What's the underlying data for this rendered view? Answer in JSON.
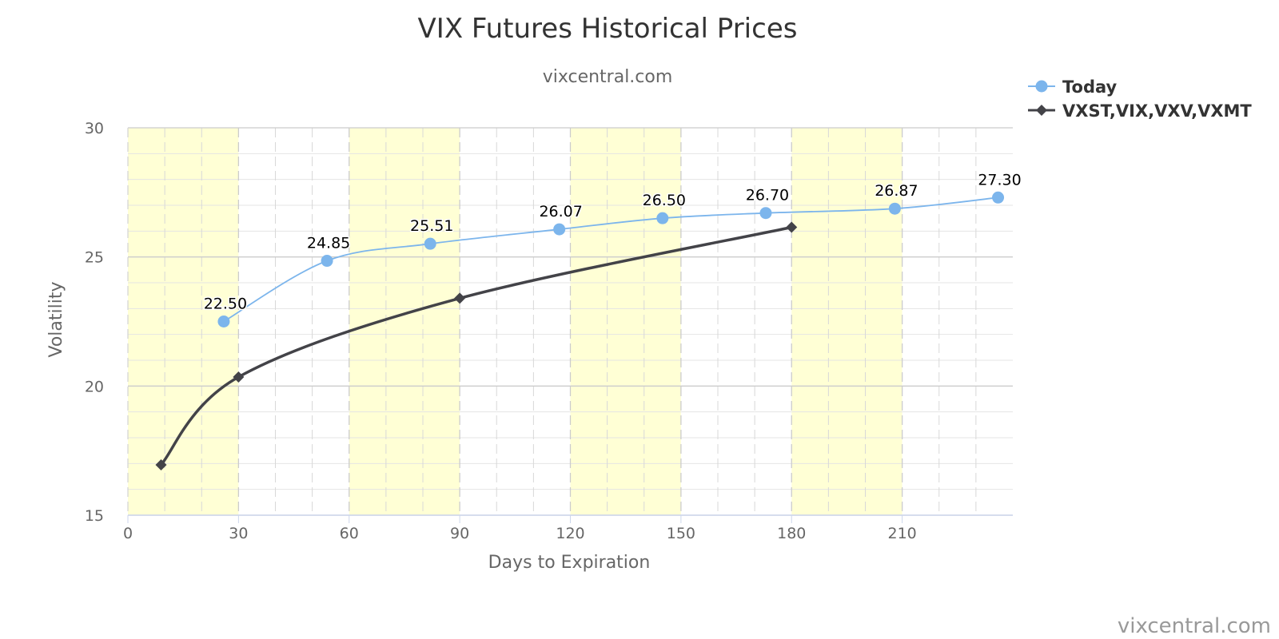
{
  "chart_data": {
    "type": "line",
    "title": "VIX Futures Historical Prices",
    "subtitle": "vixcentral.com",
    "xlabel": "Days to Expiration",
    "ylabel": "Volatility",
    "xlim": [
      0,
      240
    ],
    "ylim": [
      15,
      30
    ],
    "x_ticks": [
      0,
      30,
      60,
      90,
      120,
      150,
      180,
      210
    ],
    "y_ticks": [
      15,
      20,
      25,
      30
    ],
    "x_minor_step": 10,
    "y_minor_step": 1,
    "grid": true,
    "plot_bands": [
      {
        "from": 0,
        "to": 30,
        "color": "#ffffd5"
      },
      {
        "from": 60,
        "to": 90,
        "color": "#ffffd5"
      },
      {
        "from": 120,
        "to": 150,
        "color": "#ffffd5"
      },
      {
        "from": 180,
        "to": 210,
        "color": "#ffffd5"
      }
    ],
    "legend_position": "top-right",
    "series": [
      {
        "name": "Today",
        "color": "#7cb5ec",
        "marker": "circle",
        "show_labels": true,
        "points": [
          {
            "x": 26,
            "y": 22.5,
            "label": "22.50"
          },
          {
            "x": 54,
            "y": 24.85,
            "label": "24.85"
          },
          {
            "x": 82,
            "y": 25.51,
            "label": "25.51"
          },
          {
            "x": 117,
            "y": 26.07,
            "label": "26.07"
          },
          {
            "x": 145,
            "y": 26.5,
            "label": "26.50"
          },
          {
            "x": 173,
            "y": 26.7,
            "label": "26.70"
          },
          {
            "x": 208,
            "y": 26.87,
            "label": "26.87"
          },
          {
            "x": 236,
            "y": 27.3,
            "label": "27.30"
          }
        ]
      },
      {
        "name": "VXST,VIX,VXV,VXMT",
        "color": "#434348",
        "marker": "diamond",
        "show_labels": false,
        "points": [
          {
            "x": 9,
            "y": 16.95
          },
          {
            "x": 30,
            "y": 20.35
          },
          {
            "x": 90,
            "y": 23.4
          },
          {
            "x": 180,
            "y": 26.15
          }
        ]
      }
    ],
    "credit": "vixcentral.com"
  }
}
